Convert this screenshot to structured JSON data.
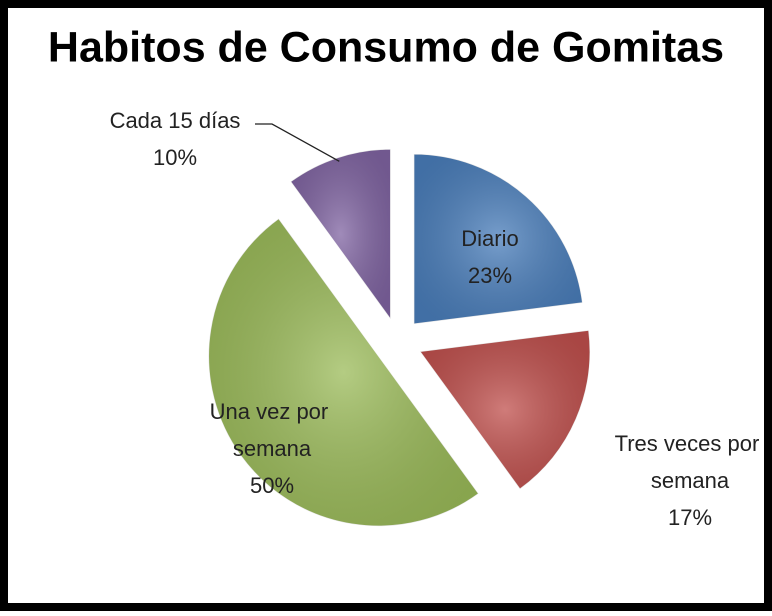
{
  "chart_data": {
    "type": "pie",
    "title": "Habitos de Consumo de Gomitas",
    "categories": [
      "Diario",
      "Tres veces por semana",
      "Una vez por semana",
      "Cada 15 días"
    ],
    "values": [
      23,
      17,
      50,
      10
    ],
    "value_labels": [
      "23%",
      "17%",
      "50%",
      "10%"
    ],
    "colors": [
      "#4a7ebb",
      "#c0504d",
      "#9bbb59",
      "#8064a2"
    ]
  }
}
